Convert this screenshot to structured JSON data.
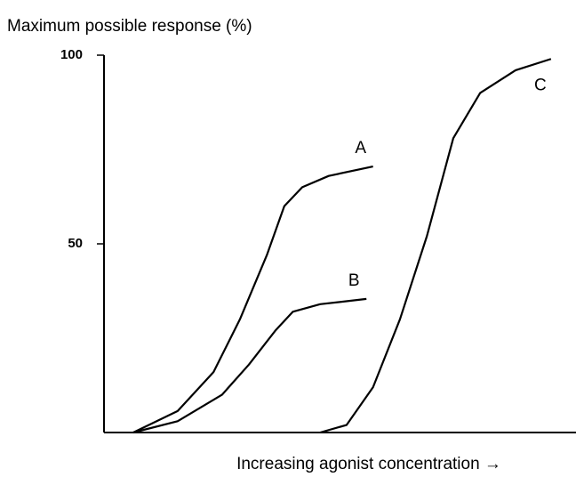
{
  "chart_data": {
    "type": "line",
    "title": "Maximum possible response (%)",
    "x_label": "Increasing agonist concentration →",
    "series": [
      {
        "name": "A",
        "color": "#000000",
        "x": [
          6.2,
          15.6,
          23.2,
          28.8,
          34.5,
          38.2,
          42,
          47.6,
          57
        ],
        "values": [
          0,
          5.7,
          16,
          30,
          47,
          60,
          65,
          68,
          70.5
        ]
      },
      {
        "name": "B",
        "color": "#000000",
        "x": [
          6.2,
          15.6,
          25,
          30.7,
          36.3,
          40,
          45.8,
          55.6
        ],
        "values": [
          0,
          3,
          10,
          18,
          27,
          32,
          34,
          35.4
        ]
      },
      {
        "name": "C",
        "color": "#000000",
        "x": [
          45.8,
          51.4,
          57,
          62.7,
          68.4,
          74,
          79.7,
          87.2,
          94.7
        ],
        "values": [
          0,
          2,
          12,
          30,
          52,
          78,
          90,
          96,
          99
        ]
      }
    ],
    "xlim": [
      0,
      100
    ],
    "ylim": [
      0,
      100
    ],
    "yticks": [
      50,
      100
    ]
  }
}
